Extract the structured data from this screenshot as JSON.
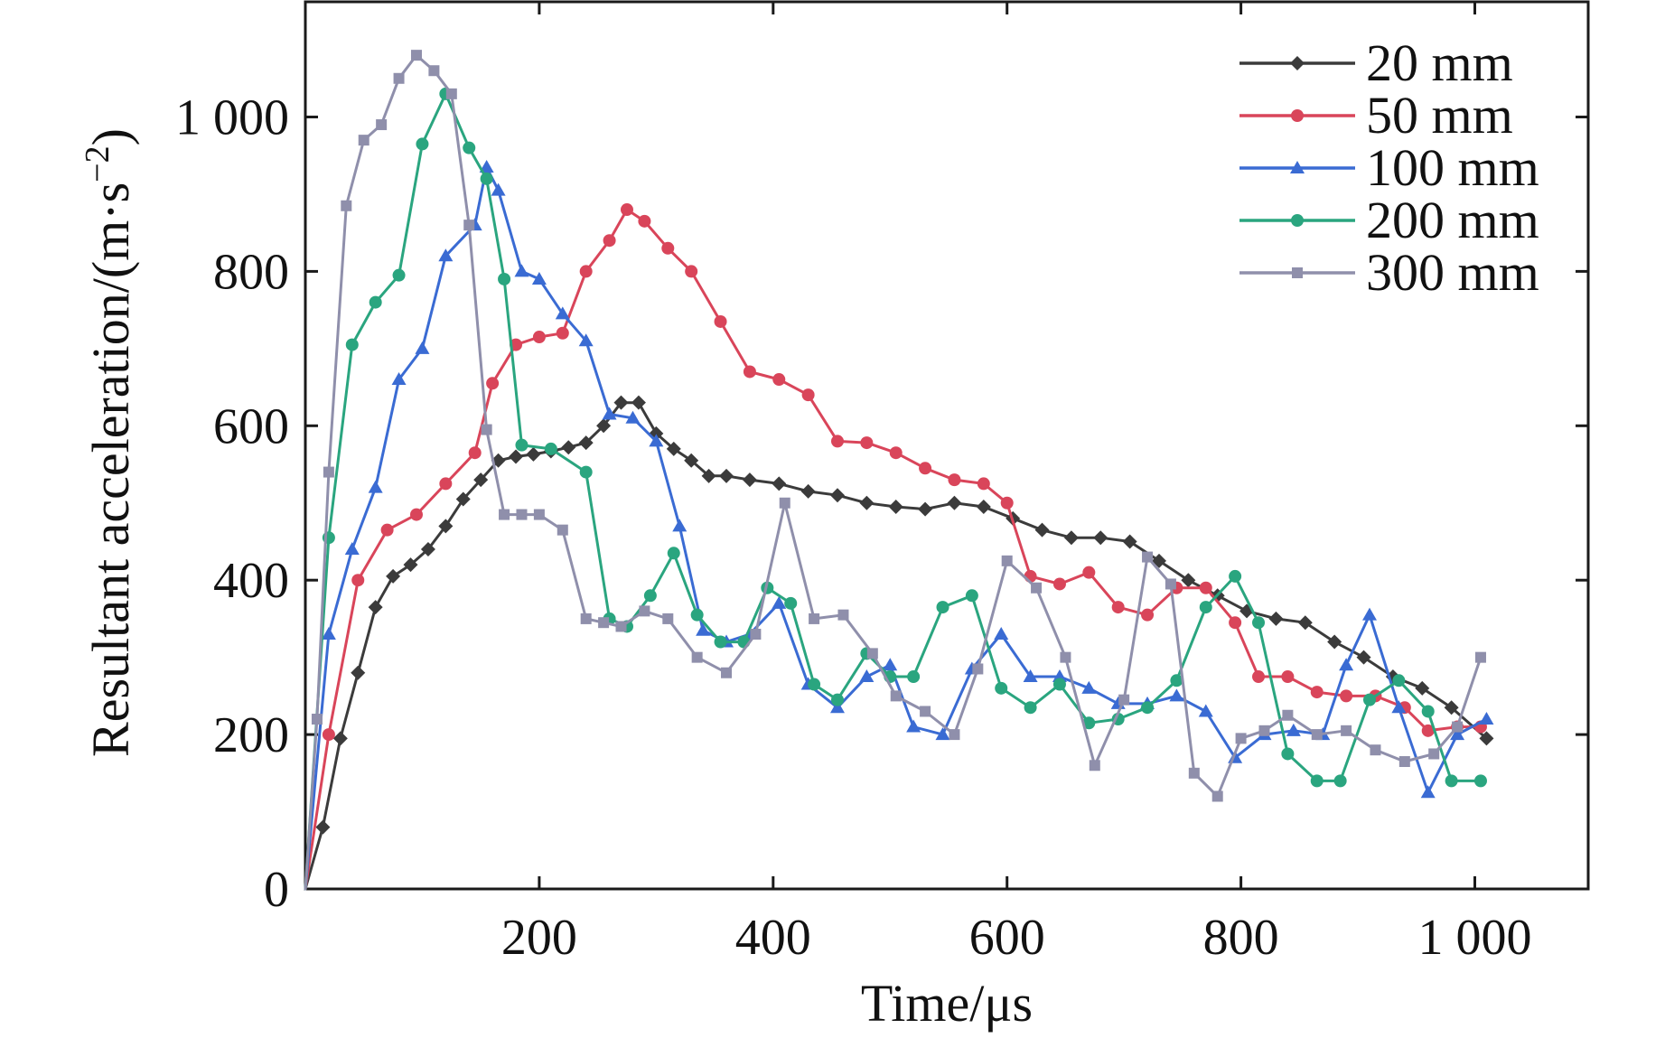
{
  "chart_data": {
    "type": "line",
    "xlabel": "Time/μs",
    "ylabel": "Resultant acceleration/(m·s",
    "ylabel_sup": "−2",
    "ylabel_close": ")",
    "xlim": [
      0,
      1100
    ],
    "ylim": [
      0,
      1100
    ],
    "xticks": [
      200,
      400,
      600,
      800,
      1000
    ],
    "xtick_labels": [
      "200",
      "400",
      "600",
      "800",
      "1 000"
    ],
    "yticks": [
      0,
      200,
      400,
      600,
      800,
      1000
    ],
    "ytick_labels": [
      "0",
      "200",
      "400",
      "600",
      "800",
      "1 000"
    ],
    "legend_position": "top-right",
    "series": [
      {
        "name": "20 mm",
        "color": "#3b3b3b",
        "marker": "diamond",
        "x": [
          0,
          15,
          30,
          45,
          60,
          75,
          90,
          105,
          120,
          135,
          150,
          165,
          180,
          195,
          210,
          225,
          240,
          255,
          270,
          285,
          300,
          315,
          330,
          345,
          360,
          380,
          405,
          430,
          455,
          480,
          505,
          530,
          555,
          580,
          605,
          630,
          655,
          680,
          705,
          730,
          755,
          780,
          805,
          830,
          855,
          880,
          905,
          930,
          955,
          980,
          1010
        ],
        "y": [
          0,
          80,
          195,
          280,
          365,
          405,
          420,
          440,
          470,
          505,
          530,
          555,
          560,
          563,
          567,
          572,
          578,
          600,
          630,
          630,
          590,
          570,
          555,
          535,
          535,
          530,
          525,
          515,
          510,
          500,
          495,
          492,
          500,
          495,
          480,
          465,
          455,
          455,
          450,
          425,
          400,
          380,
          360,
          350,
          345,
          320,
          300,
          275,
          260,
          235,
          195
        ]
      },
      {
        "name": "50 mm",
        "color": "#d9455a",
        "marker": "circle",
        "x": [
          0,
          20,
          45,
          70,
          95,
          120,
          145,
          160,
          180,
          200,
          220,
          240,
          260,
          275,
          290,
          310,
          330,
          355,
          380,
          405,
          430,
          455,
          480,
          505,
          530,
          555,
          580,
          600,
          620,
          645,
          670,
          695,
          720,
          745,
          770,
          795,
          815,
          840,
          865,
          890,
          915,
          940,
          960,
          985,
          1005
        ],
        "y": [
          0,
          200,
          400,
          465,
          485,
          525,
          565,
          655,
          705,
          715,
          720,
          800,
          840,
          880,
          865,
          830,
          800,
          735,
          670,
          660,
          640,
          580,
          578,
          565,
          545,
          530,
          525,
          500,
          405,
          395,
          410,
          365,
          355,
          390,
          390,
          345,
          275,
          275,
          255,
          250,
          250,
          235,
          205,
          210,
          210
        ]
      },
      {
        "name": "100 mm",
        "color": "#3a6bd3",
        "marker": "triangle",
        "x": [
          0,
          20,
          40,
          60,
          80,
          100,
          120,
          145,
          155,
          165,
          185,
          200,
          220,
          240,
          260,
          280,
          300,
          320,
          340,
          360,
          380,
          405,
          430,
          455,
          480,
          500,
          520,
          545,
          570,
          595,
          620,
          645,
          670,
          695,
          720,
          745,
          770,
          795,
          820,
          845,
          870,
          890,
          910,
          935,
          960,
          985,
          1010
        ],
        "y": [
          0,
          330,
          440,
          520,
          660,
          700,
          820,
          860,
          935,
          905,
          800,
          790,
          745,
          710,
          615,
          610,
          580,
          470,
          335,
          320,
          330,
          370,
          265,
          235,
          275,
          290,
          210,
          200,
          285,
          330,
          275,
          275,
          260,
          240,
          240,
          250,
          230,
          170,
          200,
          205,
          200,
          290,
          355,
          235,
          125,
          200,
          220
        ]
      },
      {
        "name": "200 mm",
        "color": "#2aa57f",
        "marker": "circle",
        "x": [
          0,
          20,
          40,
          60,
          80,
          100,
          120,
          140,
          155,
          170,
          185,
          210,
          240,
          260,
          275,
          295,
          315,
          335,
          355,
          375,
          395,
          415,
          435,
          455,
          480,
          500,
          520,
          545,
          570,
          595,
          620,
          645,
          670,
          695,
          720,
          745,
          770,
          795,
          815,
          840,
          865,
          885,
          910,
          935,
          960,
          980,
          1005
        ],
        "y": [
          0,
          455,
          705,
          760,
          795,
          965,
          1030,
          960,
          920,
          790,
          575,
          570,
          540,
          350,
          340,
          380,
          435,
          355,
          320,
          320,
          390,
          370,
          265,
          245,
          305,
          275,
          275,
          365,
          380,
          260,
          235,
          265,
          215,
          220,
          235,
          270,
          365,
          405,
          345,
          175,
          140,
          140,
          245,
          270,
          230,
          140,
          140
        ]
      },
      {
        "name": "300 mm",
        "color": "#8f8fab",
        "marker": "square",
        "x": [
          0,
          10,
          20,
          35,
          50,
          65,
          80,
          95,
          110,
          125,
          140,
          155,
          170,
          185,
          200,
          220,
          240,
          255,
          270,
          290,
          310,
          335,
          360,
          385,
          410,
          435,
          460,
          485,
          505,
          530,
          555,
          575,
          600,
          625,
          650,
          675,
          700,
          720,
          740,
          760,
          780,
          800,
          820,
          840,
          865,
          890,
          915,
          940,
          965,
          985,
          1005
        ],
        "y": [
          0,
          220,
          540,
          885,
          970,
          990,
          1050,
          1080,
          1060,
          1030,
          860,
          595,
          485,
          485,
          485,
          465,
          350,
          345,
          340,
          360,
          350,
          300,
          280,
          330,
          500,
          350,
          355,
          305,
          250,
          230,
          200,
          285,
          425,
          390,
          300,
          160,
          245,
          430,
          395,
          150,
          120,
          195,
          205,
          225,
          200,
          205,
          180,
          165,
          175,
          210,
          300
        ]
      }
    ]
  }
}
